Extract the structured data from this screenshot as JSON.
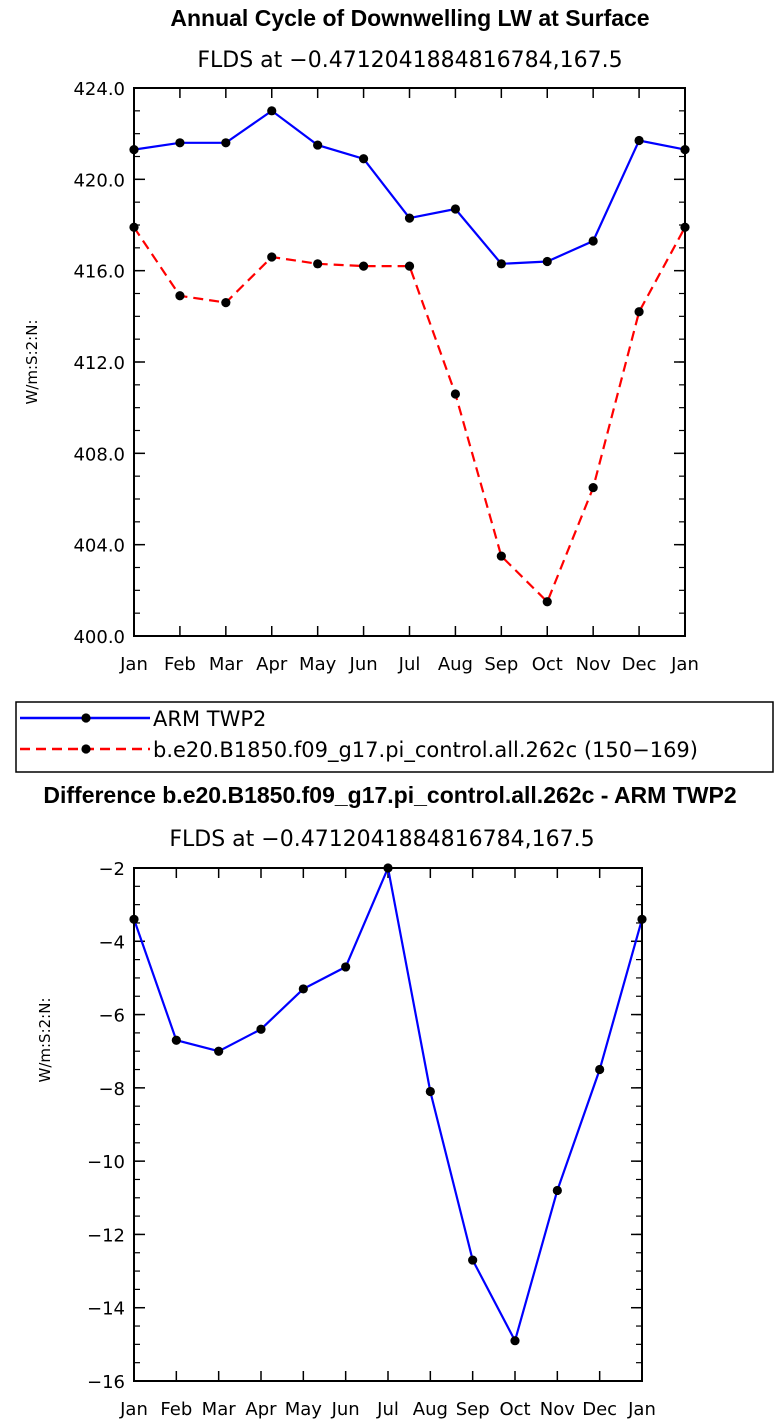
{
  "chart_data": [
    {
      "type": "line",
      "title": "Annual Cycle of Downwelling LW at Surface",
      "subtitle": "FLDS at −0.4712041884816784,167.5",
      "ylabel": "W/m:S:2:N:",
      "xlabel": "",
      "categories": [
        "Jan",
        "Feb",
        "Mar",
        "Apr",
        "May",
        "Jun",
        "Jul",
        "Aug",
        "Sep",
        "Oct",
        "Nov",
        "Dec",
        "Jan"
      ],
      "ylim": [
        400,
        424
      ],
      "yticks": [
        400,
        404,
        408,
        412,
        416,
        420,
        424
      ],
      "ytick_labels": [
        "400.0",
        "404.0",
        "408.0",
        "412.0",
        "416.0",
        "420.0",
        "424.0"
      ],
      "grid": false,
      "legend": {
        "placement": "below"
      },
      "series": [
        {
          "name": "ARM TWP2",
          "color": "#0000ff",
          "dash": "solid",
          "marker": "circle",
          "values": [
            421.3,
            421.6,
            421.6,
            423.0,
            421.5,
            420.9,
            418.3,
            418.7,
            416.3,
            416.4,
            417.3,
            421.7,
            421.3
          ]
        },
        {
          "name": "b.e20.B1850.f09_g17.pi_control.all.262c (150−169)",
          "color": "#ff0000",
          "dash": "dashed",
          "marker": "circle",
          "values": [
            417.9,
            414.9,
            414.6,
            416.6,
            416.3,
            416.2,
            416.2,
            410.6,
            403.5,
            401.5,
            406.5,
            414.2,
            417.9
          ]
        }
      ]
    },
    {
      "type": "line",
      "title": "Difference b.e20.B1850.f09_g17.pi_control.all.262c - ARM TWP2",
      "subtitle": "FLDS at −0.4712041884816784,167.5",
      "ylabel": "W/m:S:2:N:",
      "xlabel": "",
      "categories": [
        "Jan",
        "Feb",
        "Mar",
        "Apr",
        "May",
        "Jun",
        "Jul",
        "Aug",
        "Sep",
        "Oct",
        "Nov",
        "Dec",
        "Jan"
      ],
      "ylim": [
        -16,
        -2
      ],
      "yticks": [
        -16,
        -14,
        -12,
        -10,
        -8,
        -6,
        -4,
        -2
      ],
      "ytick_labels": [
        "−16",
        "−14",
        "−12",
        "−10",
        "−8",
        "−6",
        "−4",
        "−2"
      ],
      "grid": false,
      "series": [
        {
          "color": "#0000ff",
          "dash": "solid",
          "marker": "circle",
          "values": [
            -3.4,
            -6.7,
            -7.0,
            -6.4,
            -5.3,
            -4.7,
            -2.0,
            -8.1,
            -12.7,
            -14.9,
            -10.8,
            -7.5,
            -3.4
          ]
        }
      ]
    }
  ]
}
